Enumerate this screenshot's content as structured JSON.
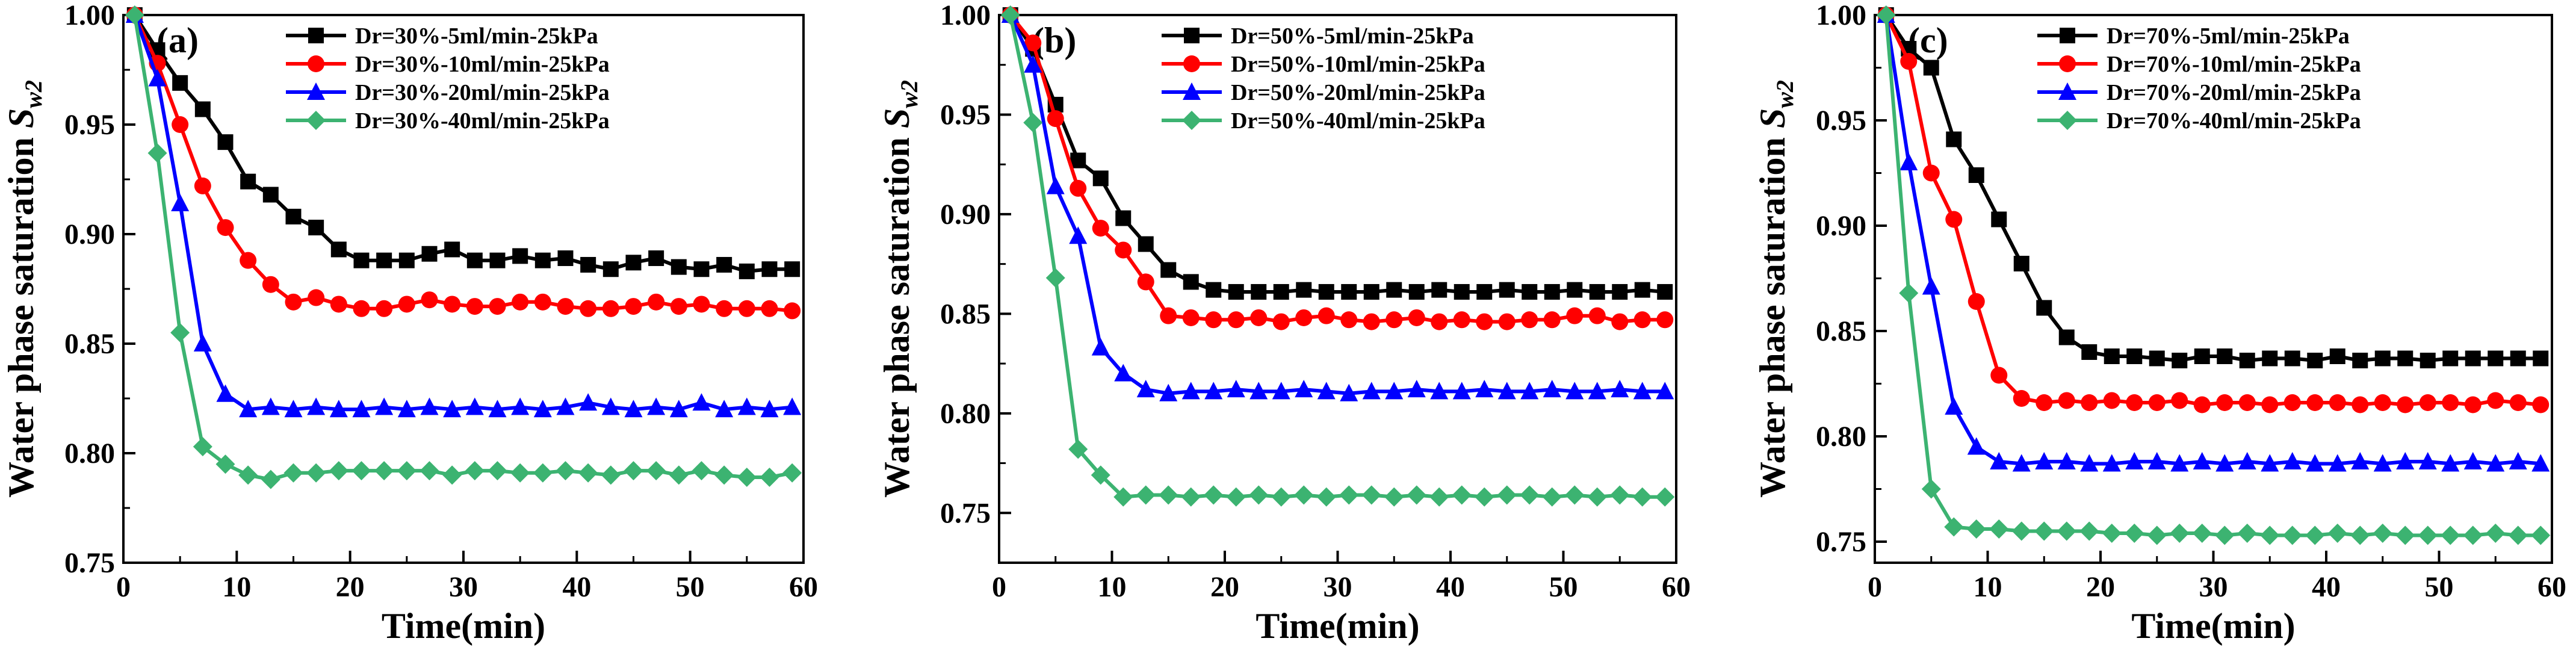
{
  "chart_data": [
    {
      "type": "line",
      "panel_label": "(a)",
      "xlabel": "Time(min)",
      "ylabel_main": "Water phase saturation ",
      "ylabel_symbol": "S",
      "ylabel_subscript": "w2",
      "xlim": [
        0,
        60
      ],
      "ylim": [
        0.75,
        1.0
      ],
      "xticks": [
        0,
        10,
        20,
        30,
        40,
        50,
        60
      ],
      "yticks": [
        0.75,
        0.8,
        0.85,
        0.9,
        0.95,
        1.0
      ],
      "xtick_labels": [
        "0",
        "10",
        "20",
        "30",
        "40",
        "50",
        "60"
      ],
      "ytick_labels": [
        "0.75",
        "0.80",
        "0.85",
        "0.90",
        "0.95",
        "1.00"
      ],
      "legend_position": "top-right",
      "series": [
        {
          "name": "Dr=30%-5ml/min-25kPa",
          "color": "#000000",
          "marker": "square",
          "x": [
            1,
            3,
            5,
            7,
            9,
            11,
            13,
            15,
            17,
            19,
            21,
            23,
            25,
            27,
            29,
            31,
            33,
            35,
            37,
            39,
            41,
            43,
            45,
            47,
            49,
            51,
            53,
            55,
            57,
            59
          ],
          "y": [
            1.0,
            0.984,
            0.969,
            0.957,
            0.942,
            0.924,
            0.918,
            0.908,
            0.903,
            0.893,
            0.888,
            0.888,
            0.888,
            0.891,
            0.893,
            0.888,
            0.888,
            0.89,
            0.888,
            0.889,
            0.886,
            0.884,
            0.887,
            0.889,
            0.885,
            0.884,
            0.886,
            0.883,
            0.884,
            0.884
          ]
        },
        {
          "name": "Dr=30%-10ml/min-25kPa",
          "color": "#ff0000",
          "marker": "circle",
          "x": [
            1,
            3,
            5,
            7,
            9,
            11,
            13,
            15,
            17,
            19,
            21,
            23,
            25,
            27,
            29,
            31,
            33,
            35,
            37,
            39,
            41,
            43,
            45,
            47,
            49,
            51,
            53,
            55,
            57,
            59
          ],
          "y": [
            1.0,
            0.978,
            0.95,
            0.922,
            0.903,
            0.888,
            0.877,
            0.869,
            0.871,
            0.868,
            0.866,
            0.866,
            0.868,
            0.87,
            0.868,
            0.867,
            0.867,
            0.869,
            0.869,
            0.867,
            0.866,
            0.866,
            0.867,
            0.869,
            0.867,
            0.868,
            0.866,
            0.866,
            0.866,
            0.865
          ]
        },
        {
          "name": "Dr=30%-20ml/min-25kPa",
          "color": "#0000ff",
          "marker": "triangle",
          "x": [
            1,
            3,
            5,
            7,
            9,
            11,
            13,
            15,
            17,
            19,
            21,
            23,
            25,
            27,
            29,
            31,
            33,
            35,
            37,
            39,
            41,
            43,
            45,
            47,
            49,
            51,
            53,
            55,
            57,
            59
          ],
          "y": [
            1.0,
            0.971,
            0.914,
            0.85,
            0.827,
            0.82,
            0.821,
            0.82,
            0.821,
            0.82,
            0.82,
            0.821,
            0.82,
            0.821,
            0.82,
            0.821,
            0.82,
            0.821,
            0.82,
            0.821,
            0.823,
            0.821,
            0.82,
            0.821,
            0.82,
            0.823,
            0.82,
            0.821,
            0.82,
            0.821
          ]
        },
        {
          "name": "Dr=30%-40ml/min-25kPa",
          "color": "#3cb371",
          "marker": "diamond",
          "x": [
            1,
            3,
            5,
            7,
            9,
            11,
            13,
            15,
            17,
            19,
            21,
            23,
            25,
            27,
            29,
            31,
            33,
            35,
            37,
            39,
            41,
            43,
            45,
            47,
            49,
            51,
            53,
            55,
            57,
            59
          ],
          "y": [
            1.0,
            0.937,
            0.855,
            0.803,
            0.795,
            0.79,
            0.788,
            0.791,
            0.791,
            0.792,
            0.792,
            0.792,
            0.792,
            0.792,
            0.79,
            0.792,
            0.792,
            0.791,
            0.791,
            0.792,
            0.791,
            0.79,
            0.792,
            0.792,
            0.79,
            0.792,
            0.79,
            0.789,
            0.789,
            0.791
          ]
        }
      ]
    },
    {
      "type": "line",
      "panel_label": "(b)",
      "xlabel": "Time(min)",
      "ylabel_main": "Water phase saturation ",
      "ylabel_symbol": "S",
      "ylabel_subscript": "w2",
      "xlim": [
        0,
        60
      ],
      "ylim": [
        0.725,
        1.0
      ],
      "xticks": [
        0,
        10,
        20,
        30,
        40,
        50,
        60
      ],
      "yticks": [
        0.75,
        0.8,
        0.85,
        0.9,
        0.95,
        1.0
      ],
      "xtick_labels": [
        "0",
        "10",
        "20",
        "30",
        "40",
        "50",
        "60"
      ],
      "ytick_labels": [
        "0.75",
        "0.80",
        "0.85",
        "0.90",
        "0.95",
        "1.00"
      ],
      "legend_position": "top-right",
      "series": [
        {
          "name": "Dr=50%-5ml/min-25kPa",
          "color": "#000000",
          "marker": "square",
          "x": [
            1,
            3,
            5,
            7,
            9,
            11,
            13,
            15,
            17,
            19,
            21,
            23,
            25,
            27,
            29,
            31,
            33,
            35,
            37,
            39,
            41,
            43,
            45,
            47,
            49,
            51,
            53,
            55,
            57,
            59
          ],
          "y": [
            1.0,
            0.983,
            0.955,
            0.927,
            0.918,
            0.898,
            0.885,
            0.872,
            0.866,
            0.862,
            0.861,
            0.861,
            0.861,
            0.862,
            0.861,
            0.861,
            0.861,
            0.862,
            0.861,
            0.862,
            0.861,
            0.861,
            0.862,
            0.861,
            0.861,
            0.862,
            0.861,
            0.861,
            0.862,
            0.861
          ]
        },
        {
          "name": "Dr=50%-10ml/min-25kPa",
          "color": "#ff0000",
          "marker": "circle",
          "x": [
            1,
            3,
            5,
            7,
            9,
            11,
            13,
            15,
            17,
            19,
            21,
            23,
            25,
            27,
            29,
            31,
            33,
            35,
            37,
            39,
            41,
            43,
            45,
            47,
            49,
            51,
            53,
            55,
            57,
            59
          ],
          "y": [
            1.0,
            0.986,
            0.948,
            0.913,
            0.893,
            0.882,
            0.866,
            0.849,
            0.848,
            0.847,
            0.847,
            0.848,
            0.846,
            0.848,
            0.849,
            0.847,
            0.846,
            0.847,
            0.848,
            0.846,
            0.847,
            0.846,
            0.846,
            0.847,
            0.847,
            0.849,
            0.849,
            0.846,
            0.847,
            0.847
          ]
        },
        {
          "name": "Dr=50%-20ml/min-25kPa",
          "color": "#0000ff",
          "marker": "triangle",
          "x": [
            1,
            3,
            5,
            7,
            9,
            11,
            13,
            15,
            17,
            19,
            21,
            23,
            25,
            27,
            29,
            31,
            33,
            35,
            37,
            39,
            41,
            43,
            45,
            47,
            49,
            51,
            53,
            55,
            57,
            59
          ],
          "y": [
            1.0,
            0.975,
            0.914,
            0.889,
            0.833,
            0.82,
            0.812,
            0.81,
            0.811,
            0.811,
            0.812,
            0.811,
            0.811,
            0.812,
            0.811,
            0.81,
            0.811,
            0.811,
            0.812,
            0.811,
            0.811,
            0.812,
            0.811,
            0.811,
            0.812,
            0.811,
            0.811,
            0.812,
            0.811,
            0.811
          ]
        },
        {
          "name": "Dr=50%-40ml/min-25kPa",
          "color": "#3cb371",
          "marker": "diamond",
          "x": [
            1,
            3,
            5,
            7,
            9,
            11,
            13,
            15,
            17,
            19,
            21,
            23,
            25,
            27,
            29,
            31,
            33,
            35,
            37,
            39,
            41,
            43,
            45,
            47,
            49,
            51,
            53,
            55,
            57,
            59
          ],
          "y": [
            1.0,
            0.946,
            0.868,
            0.782,
            0.769,
            0.758,
            0.759,
            0.759,
            0.758,
            0.759,
            0.758,
            0.759,
            0.758,
            0.759,
            0.758,
            0.759,
            0.759,
            0.758,
            0.759,
            0.758,
            0.759,
            0.758,
            0.759,
            0.759,
            0.758,
            0.759,
            0.758,
            0.759,
            0.758,
            0.758
          ]
        }
      ]
    },
    {
      "type": "line",
      "panel_label": "(c)",
      "xlabel": "Time(min)",
      "ylabel_main": "Water phase saturation ",
      "ylabel_symbol": "S",
      "ylabel_subscript": "w2",
      "xlim": [
        0,
        60
      ],
      "ylim": [
        0.74,
        1.0
      ],
      "xticks": [
        0,
        10,
        20,
        30,
        40,
        50,
        60
      ],
      "yticks": [
        0.75,
        0.8,
        0.85,
        0.9,
        0.95,
        1.0
      ],
      "xtick_labels": [
        "0",
        "10",
        "20",
        "30",
        "40",
        "50",
        "60"
      ],
      "ytick_labels": [
        "0.75",
        "0.80",
        "0.85",
        "0.90",
        "0.95",
        "1.00"
      ],
      "legend_position": "top-right",
      "series": [
        {
          "name": "Dr=70%-5ml/min-25kPa",
          "color": "#000000",
          "marker": "square",
          "x": [
            1,
            3,
            5,
            7,
            9,
            11,
            13,
            15,
            17,
            19,
            21,
            23,
            25,
            27,
            29,
            31,
            33,
            35,
            37,
            39,
            41,
            43,
            45,
            47,
            49,
            51,
            53,
            55,
            57,
            59
          ],
          "y": [
            1.0,
            0.984,
            0.975,
            0.941,
            0.924,
            0.903,
            0.882,
            0.861,
            0.847,
            0.84,
            0.838,
            0.838,
            0.837,
            0.836,
            0.838,
            0.838,
            0.836,
            0.837,
            0.837,
            0.836,
            0.838,
            0.836,
            0.837,
            0.837,
            0.836,
            0.837,
            0.837,
            0.837,
            0.837,
            0.837
          ]
        },
        {
          "name": "Dr=70%-10ml/min-25kPa",
          "color": "#ff0000",
          "marker": "circle",
          "x": [
            1,
            3,
            5,
            7,
            9,
            11,
            13,
            15,
            17,
            19,
            21,
            23,
            25,
            27,
            29,
            31,
            33,
            35,
            37,
            39,
            41,
            43,
            45,
            47,
            49,
            51,
            53,
            55,
            57,
            59
          ],
          "y": [
            1.0,
            0.978,
            0.925,
            0.903,
            0.864,
            0.829,
            0.818,
            0.816,
            0.817,
            0.816,
            0.817,
            0.816,
            0.816,
            0.817,
            0.815,
            0.816,
            0.816,
            0.815,
            0.816,
            0.816,
            0.816,
            0.815,
            0.816,
            0.815,
            0.816,
            0.816,
            0.815,
            0.817,
            0.816,
            0.815
          ]
        },
        {
          "name": "Dr=70%-20ml/min-25kPa",
          "color": "#0000ff",
          "marker": "triangle",
          "x": [
            1,
            3,
            5,
            7,
            9,
            11,
            13,
            15,
            17,
            19,
            21,
            23,
            25,
            27,
            29,
            31,
            33,
            35,
            37,
            39,
            41,
            43,
            45,
            47,
            49,
            51,
            53,
            55,
            57,
            59
          ],
          "y": [
            1.0,
            0.93,
            0.871,
            0.814,
            0.795,
            0.788,
            0.787,
            0.788,
            0.788,
            0.787,
            0.787,
            0.788,
            0.788,
            0.787,
            0.788,
            0.787,
            0.788,
            0.787,
            0.788,
            0.787,
            0.787,
            0.788,
            0.787,
            0.788,
            0.788,
            0.787,
            0.788,
            0.787,
            0.788,
            0.787
          ]
        },
        {
          "name": "Dr=70%-40ml/min-25kPa",
          "color": "#3cb371",
          "marker": "diamond",
          "x": [
            1,
            3,
            5,
            7,
            9,
            11,
            13,
            15,
            17,
            19,
            21,
            23,
            25,
            27,
            29,
            31,
            33,
            35,
            37,
            39,
            41,
            43,
            45,
            47,
            49,
            51,
            53,
            55,
            57,
            59
          ],
          "y": [
            1.0,
            0.868,
            0.775,
            0.757,
            0.756,
            0.756,
            0.755,
            0.755,
            0.755,
            0.755,
            0.754,
            0.754,
            0.753,
            0.754,
            0.754,
            0.753,
            0.754,
            0.753,
            0.753,
            0.753,
            0.754,
            0.753,
            0.754,
            0.753,
            0.753,
            0.753,
            0.753,
            0.754,
            0.753,
            0.753
          ]
        }
      ]
    }
  ]
}
